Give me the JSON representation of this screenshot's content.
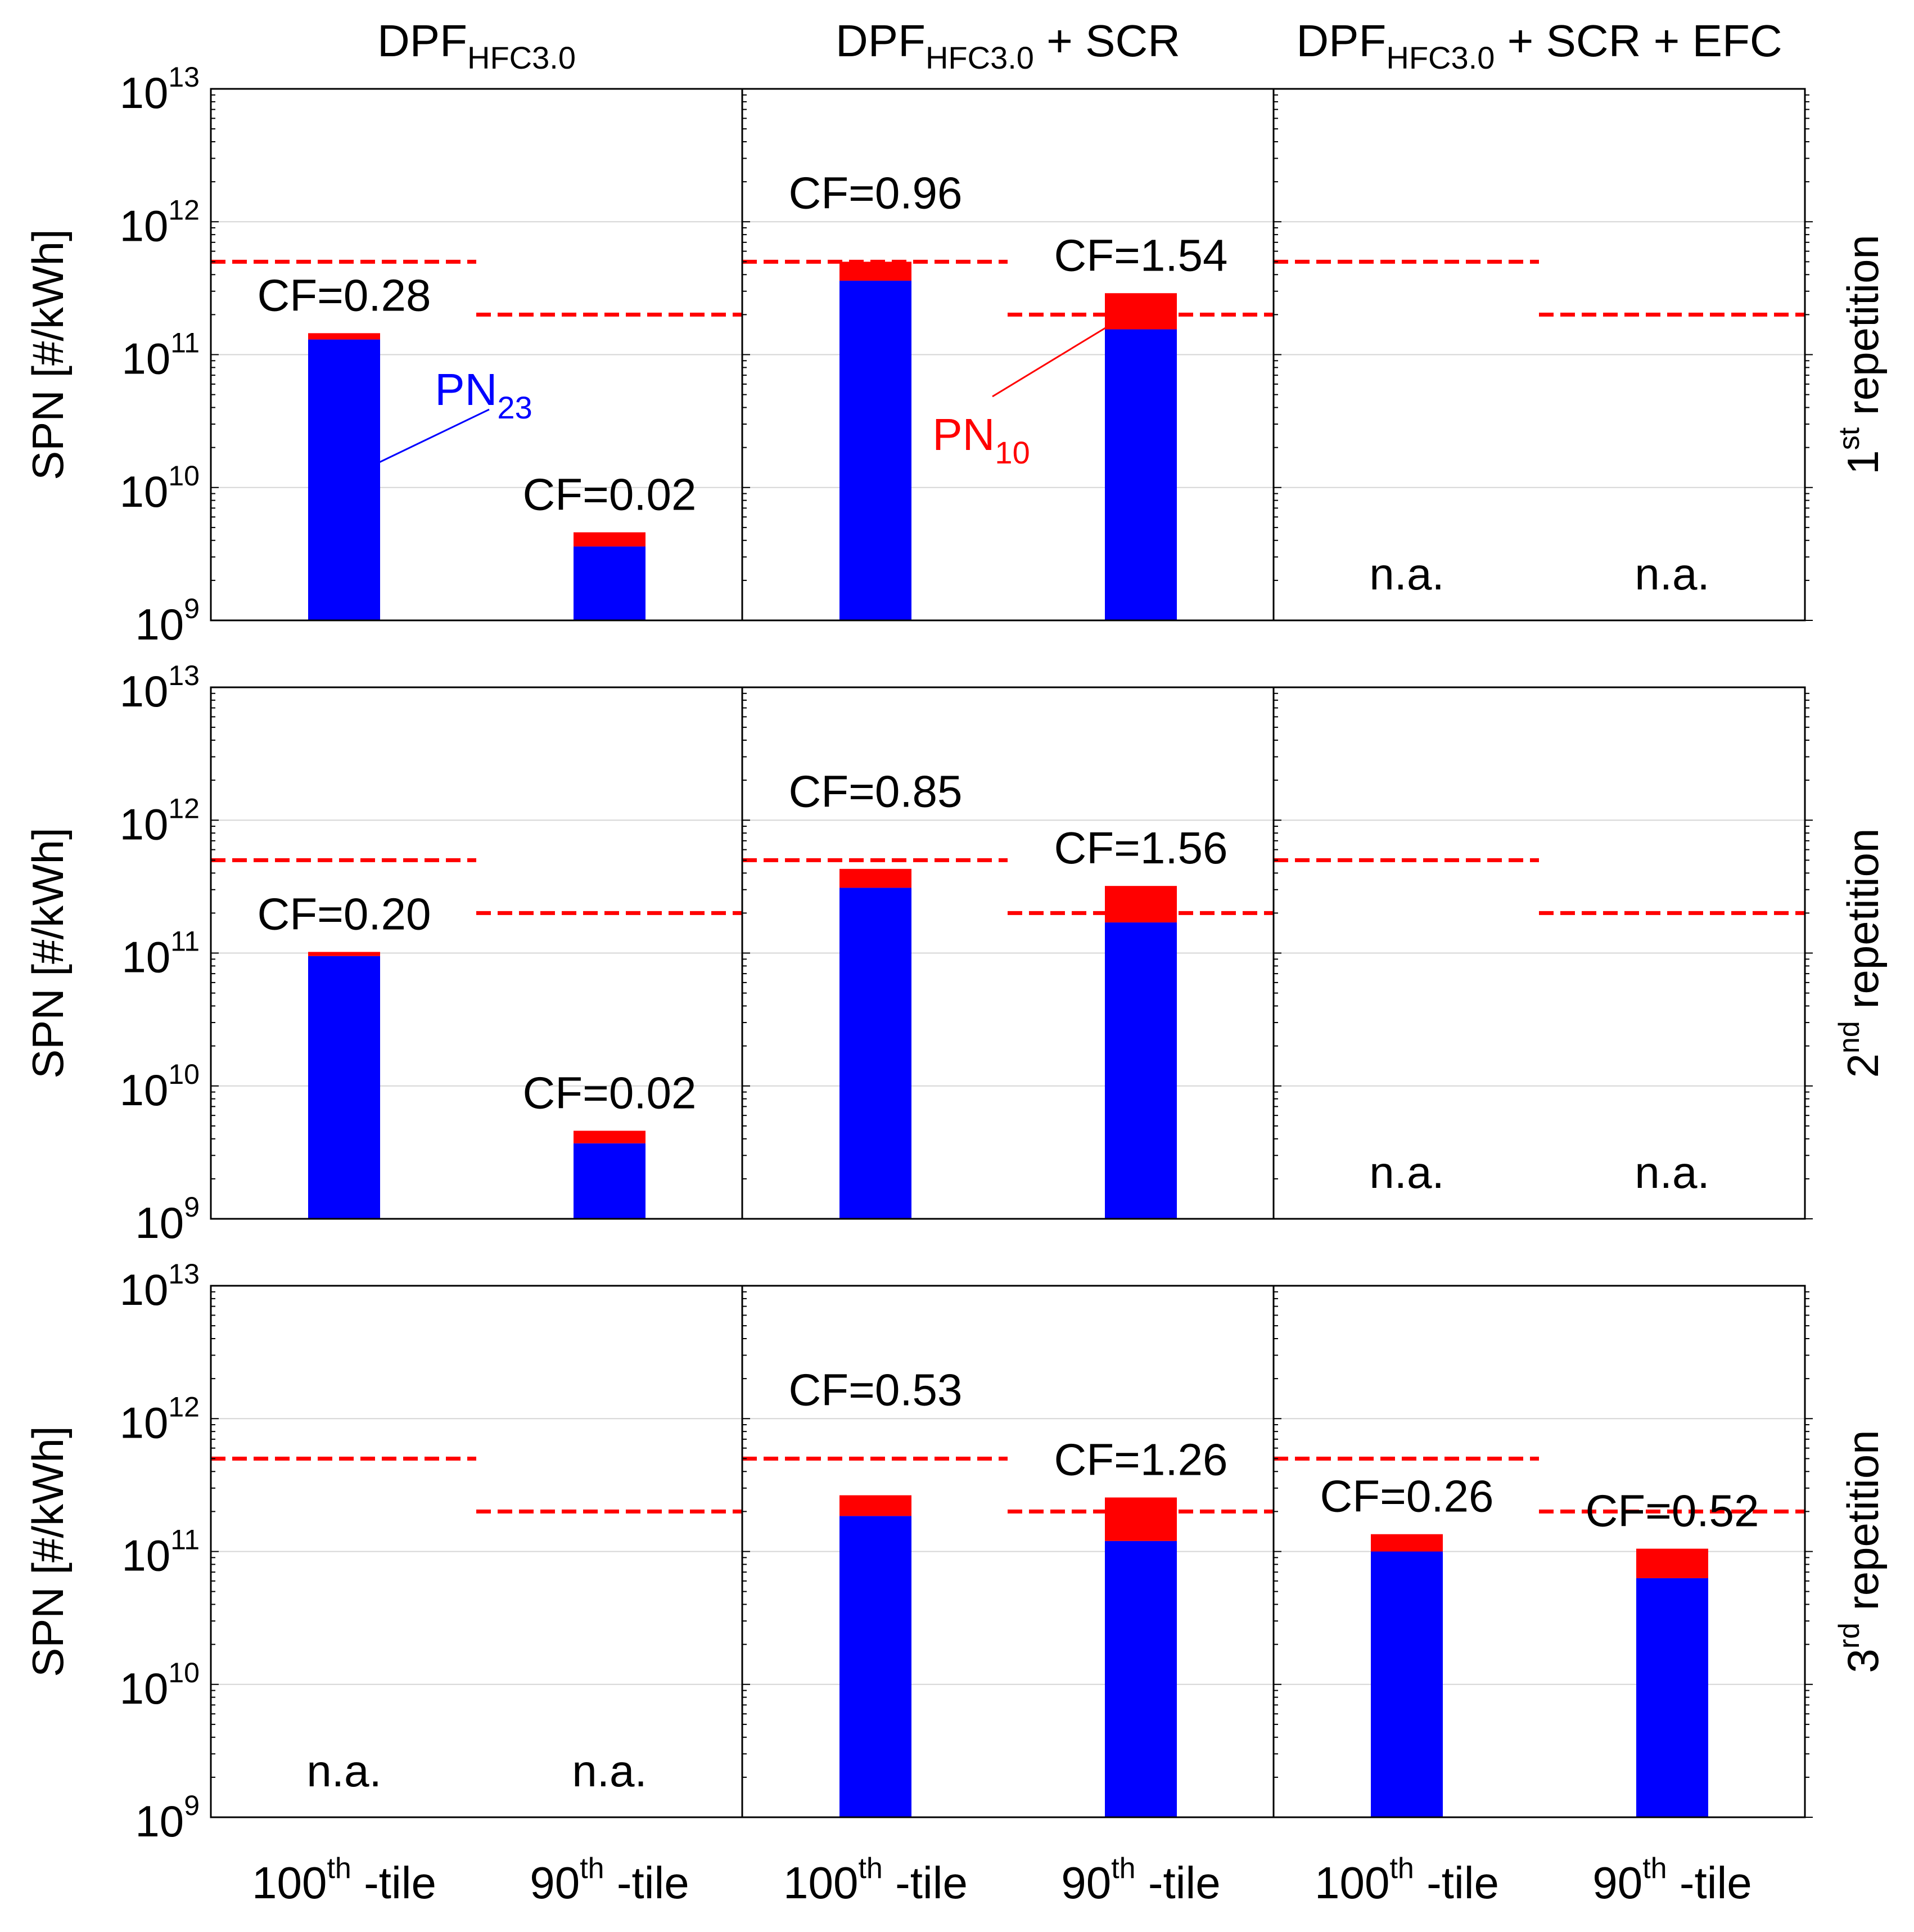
{
  "chart_data": {
    "type": "bar",
    "stacked": true,
    "scale": "log",
    "ylim": [
      1000000000.0,
      10000000000000.0
    ],
    "ylabel": "SPN [#/kWh]",
    "y_ticks": [
      {
        "base": "10",
        "exp": "9"
      },
      {
        "base": "10",
        "exp": "10"
      },
      {
        "base": "10",
        "exp": "11"
      },
      {
        "base": "10",
        "exp": "12"
      },
      {
        "base": "10",
        "exp": "13"
      }
    ],
    "columns": [
      {
        "parts": [
          {
            "t": "DPF"
          },
          {
            "t": "HFC3.0",
            "sub": true
          }
        ]
      },
      {
        "parts": [
          {
            "t": "DPF"
          },
          {
            "t": "HFC3.0",
            "sub": true
          },
          {
            "t": " + SCR"
          }
        ]
      },
      {
        "parts": [
          {
            "t": "DPF"
          },
          {
            "t": "HFC3.0",
            "sub": true
          },
          {
            "t": " + SCR + EFC"
          }
        ]
      }
    ],
    "rows": [
      {
        "num": "1",
        "sup": "st",
        "label": " repetition"
      },
      {
        "num": "2",
        "sup": "nd",
        "label": " repetition"
      },
      {
        "num": "3",
        "sup": "rd",
        "label": " repetition"
      }
    ],
    "categories": [
      {
        "num": "100",
        "sup": "th",
        "suffix": " -tile"
      },
      {
        "num": "90",
        "sup": "th",
        "suffix": " -tile"
      }
    ],
    "limits": [
      500000000000.0,
      200000000000.0
    ],
    "series": [
      {
        "name": "PN23",
        "name_base": "PN",
        "name_sub": "23",
        "color": "#0000ff"
      },
      {
        "name": "PN10",
        "name_base": "PN",
        "name_sub": "10",
        "color": "#ff0000"
      }
    ],
    "panels": [
      {
        "row": 0,
        "col": 0,
        "bars": [
          {
            "pn23": 130000000000.0,
            "pn10": 145000000000.0,
            "cf": "CF=0.28"
          },
          {
            "pn23": 3600000000.0,
            "pn10": 4600000000.0,
            "cf": "CF=0.02"
          }
        ]
      },
      {
        "row": 0,
        "col": 1,
        "bars": [
          {
            "pn23": 360000000000.0,
            "pn10": 500000000000.0,
            "cf": "CF=0.96"
          },
          {
            "pn23": 155000000000.0,
            "pn10": 290000000000.0,
            "cf": "CF=1.54"
          }
        ]
      },
      {
        "row": 0,
        "col": 2,
        "bars": [
          {
            "na": "n.a."
          },
          {
            "na": "n.a."
          }
        ]
      },
      {
        "row": 1,
        "col": 0,
        "bars": [
          {
            "pn23": 95000000000.0,
            "pn10": 102000000000.0,
            "cf": "CF=0.20"
          },
          {
            "pn23": 3700000000.0,
            "pn10": 4600000000.0,
            "cf": "CF=0.02"
          }
        ]
      },
      {
        "row": 1,
        "col": 1,
        "bars": [
          {
            "pn23": 310000000000.0,
            "pn10": 430000000000.0,
            "cf": "CF=0.85"
          },
          {
            "pn23": 170000000000.0,
            "pn10": 320000000000.0,
            "cf": "CF=1.56"
          }
        ]
      },
      {
        "row": 1,
        "col": 2,
        "bars": [
          {
            "na": "n.a."
          },
          {
            "na": "n.a."
          }
        ]
      },
      {
        "row": 2,
        "col": 0,
        "bars": [
          {
            "na": "n.a."
          },
          {
            "na": "n.a."
          }
        ]
      },
      {
        "row": 2,
        "col": 1,
        "bars": [
          {
            "pn23": 185000000000.0,
            "pn10": 265000000000.0,
            "cf": "CF=0.53"
          },
          {
            "pn23": 120000000000.0,
            "pn10": 255000000000.0,
            "cf": "CF=1.26"
          }
        ]
      },
      {
        "row": 2,
        "col": 2,
        "bars": [
          {
            "pn23": 100000000000.0,
            "pn10": 135000000000.0,
            "cf": "CF=0.26"
          },
          {
            "pn23": 63000000000.0,
            "pn10": 105000000000.0,
            "cf": "CF=0.52"
          }
        ]
      }
    ],
    "annotations": [
      {
        "series": 0,
        "row": 0,
        "col": 0,
        "bar": 0,
        "y": 15000000000.0
      },
      {
        "series": 1,
        "row": 0,
        "col": 1,
        "bar": 1,
        "y": 200000000000.0
      }
    ]
  }
}
